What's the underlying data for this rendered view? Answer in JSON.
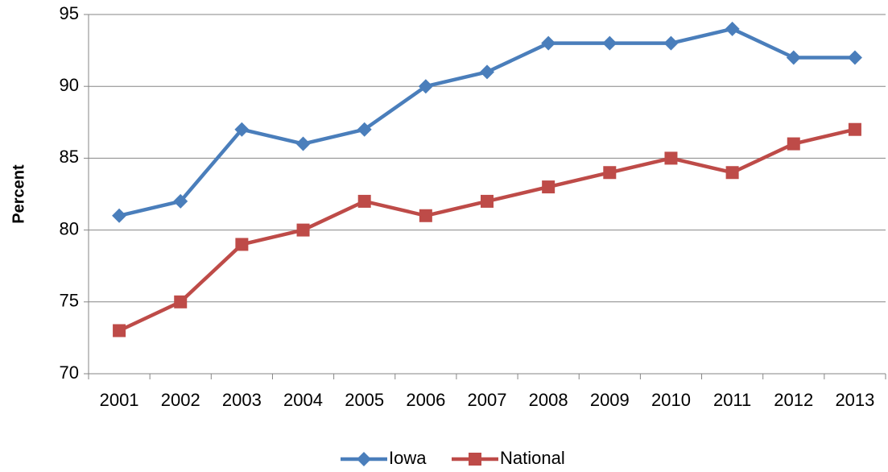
{
  "chart_data": {
    "type": "line",
    "y_label": "Percent",
    "categories": [
      "2001",
      "2002",
      "2003",
      "2004",
      "2005",
      "2006",
      "2007",
      "2008",
      "2009",
      "2010",
      "2011",
      "2012",
      "2013"
    ],
    "series": [
      {
        "name": "Iowa",
        "color": "#4a7ebb",
        "marker": "diamond",
        "values": [
          81,
          82,
          87,
          86,
          87,
          90,
          91,
          93,
          93,
          93,
          94,
          92,
          92
        ]
      },
      {
        "name": "National",
        "color": "#be4b48",
        "marker": "square",
        "values": [
          73,
          75,
          79,
          80,
          82,
          81,
          82,
          83,
          84,
          85,
          84,
          86,
          87
        ]
      }
    ],
    "ylim": [
      70,
      95
    ],
    "yticks": [
      70,
      75,
      80,
      85,
      90,
      95
    ],
    "grid": true,
    "legend": "bottom"
  }
}
